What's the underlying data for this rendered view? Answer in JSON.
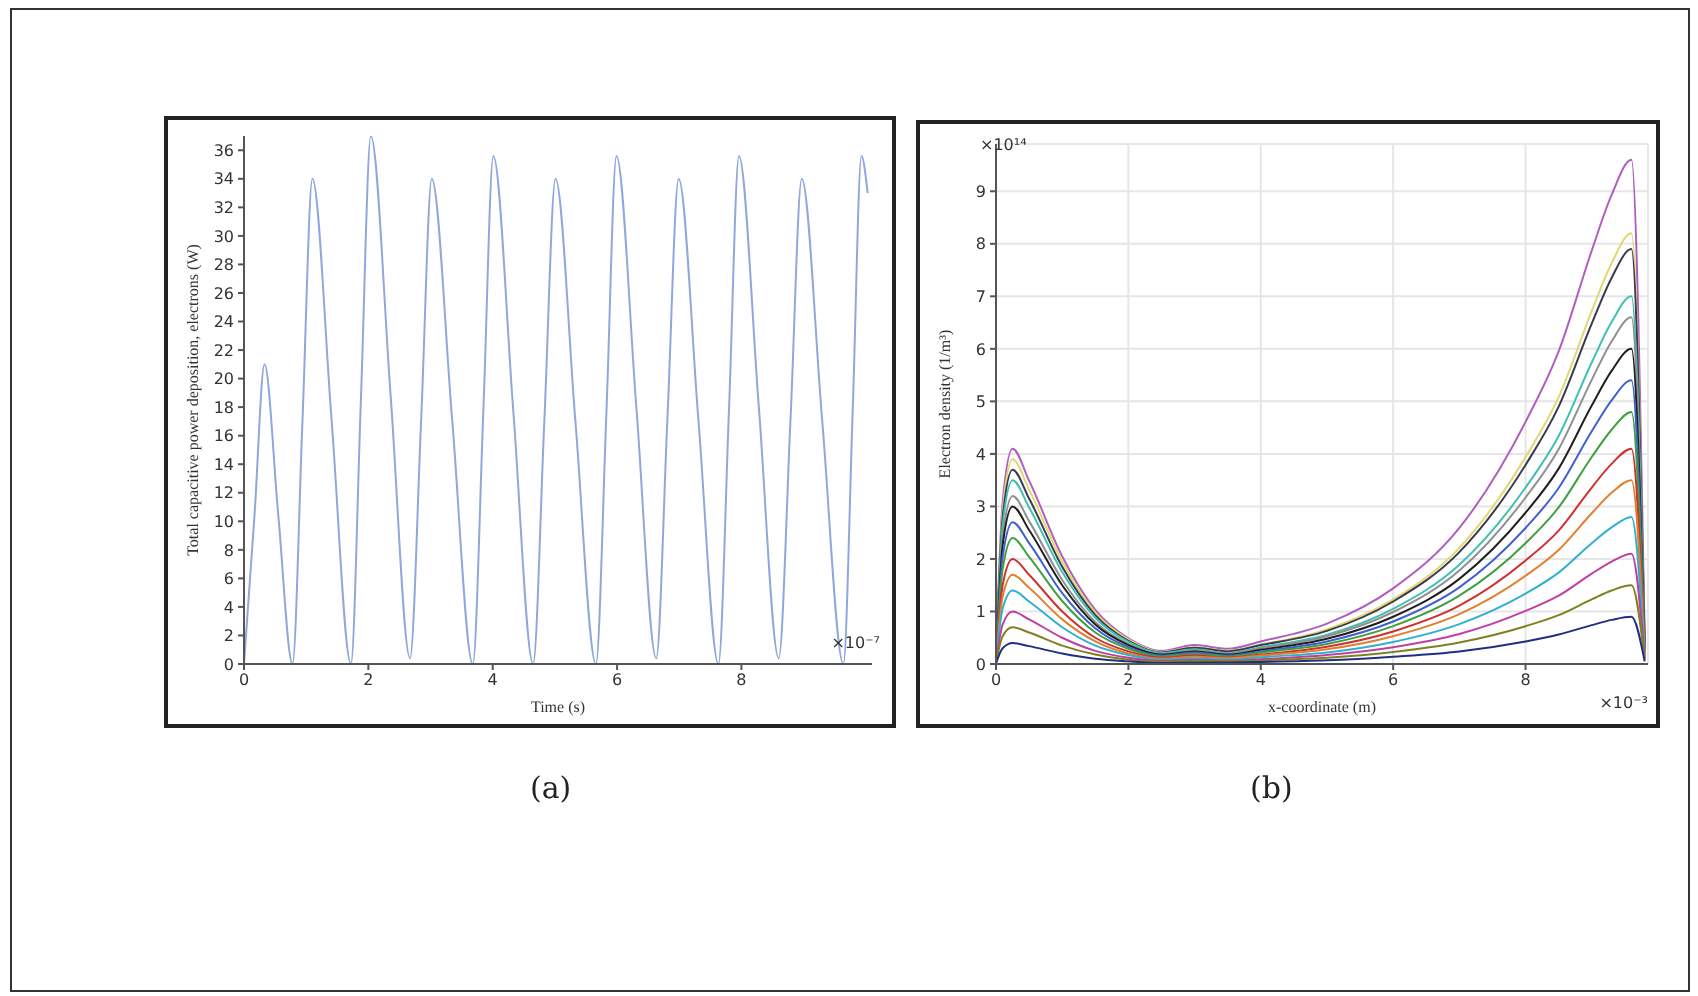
{
  "chart_data": [
    {
      "type": "line",
      "title": "(a)",
      "xlabel": "Time (s)",
      "ylabel": "Total capacitive power deposition, electrons (W)",
      "annotations": [
        "×10⁻⁷"
      ],
      "x": [
        0,
        0.17,
        0.33,
        0.55,
        0.78,
        0.94,
        1.1,
        1.41,
        1.72,
        1.88,
        2.04,
        2.36,
        2.67,
        2.85,
        3.02,
        3.35,
        3.68,
        3.85,
        4.01,
        4.33,
        4.65,
        4.83,
        5.01,
        5.33,
        5.66,
        5.83,
        5.99,
        6.31,
        6.63,
        6.81,
        6.99,
        7.31,
        7.63,
        7.8,
        7.96,
        8.28,
        8.6,
        8.79,
        8.97,
        9.3,
        9.64,
        9.79,
        9.93,
        10.03
      ],
      "series": [
        {
          "color": "#8fa8dc",
          "values": [
            0,
            10.5,
            21,
            10.5,
            0,
            17,
            34,
            17,
            0,
            18.5,
            37,
            18.7,
            0.4,
            17.2,
            34,
            17,
            0,
            17.8,
            35.6,
            17.8,
            0,
            17,
            34,
            17,
            0,
            17.8,
            35.6,
            18,
            0.4,
            17.2,
            34,
            17,
            0,
            17.8,
            35.6,
            18,
            0.4,
            17.2,
            34,
            17,
            0,
            17.8,
            35.6,
            33
          ]
        }
      ],
      "xlim": [
        0,
        10.1
      ],
      "xticks": [
        0,
        2,
        4,
        6,
        8
      ],
      "ylim": [
        0,
        37
      ],
      "yticks": [
        0,
        2,
        4,
        6,
        8,
        10,
        12,
        14,
        16,
        18,
        20,
        22,
        24,
        26,
        28,
        30,
        32,
        34,
        36
      ],
      "grid": false,
      "legend": false
    },
    {
      "type": "line",
      "title": "(b)",
      "xlabel": "x-coordinate (m)",
      "ylabel": "Electron density (1/m³)",
      "annotations": [
        "×10¹⁴",
        "×10⁻³"
      ],
      "x": [
        0,
        0.1,
        0.25,
        0.5,
        1,
        1.5,
        2,
        2.5,
        3,
        3.5,
        4,
        5,
        6,
        7,
        8,
        8.5,
        9,
        9.3,
        9.6,
        9.8
      ],
      "series": [
        {
          "color": "#b05fc0",
          "values": [
            0.12,
            3.08,
            4.1,
            3.49,
            2.05,
            1.03,
            0.49,
            0.25,
            0.36,
            0.29,
            0.43,
            0.77,
            1.44,
            2.59,
            4.61,
            5.95,
            7.87,
            8.93,
            9.6,
            0.48
          ]
        },
        {
          "color": "#e0d870",
          "values": [
            0.12,
            2.93,
            3.9,
            3.32,
            1.95,
            0.98,
            0.47,
            0.23,
            0.32,
            0.25,
            0.37,
            0.66,
            1.23,
            2.21,
            3.94,
            5.08,
            6.72,
            7.63,
            8.2,
            0.41
          ]
        },
        {
          "color": "#3a3a50",
          "values": [
            0.11,
            2.78,
            3.7,
            3.15,
            1.85,
            0.93,
            0.44,
            0.22,
            0.31,
            0.24,
            0.36,
            0.63,
            1.19,
            2.13,
            3.79,
            4.9,
            6.48,
            7.35,
            7.9,
            0.4
          ]
        },
        {
          "color": "#40c0b0",
          "values": [
            0.11,
            2.63,
            3.5,
            2.98,
            1.75,
            0.88,
            0.42,
            0.21,
            0.28,
            0.21,
            0.32,
            0.56,
            1.05,
            1.89,
            3.36,
            4.34,
            5.74,
            6.51,
            7.0,
            0.35
          ]
        },
        {
          "color": "#909090",
          "values": [
            0.1,
            2.4,
            3.2,
            2.72,
            1.6,
            0.8,
            0.38,
            0.19,
            0.26,
            0.2,
            0.3,
            0.53,
            0.99,
            1.78,
            3.17,
            4.09,
            5.41,
            6.14,
            6.6,
            0.33
          ]
        },
        {
          "color": "#202020",
          "values": [
            0.09,
            2.25,
            3.0,
            2.55,
            1.5,
            0.75,
            0.36,
            0.18,
            0.24,
            0.18,
            0.27,
            0.48,
            0.9,
            1.62,
            2.88,
            3.72,
            4.92,
            5.58,
            6.0,
            0.3
          ]
        },
        {
          "color": "#4060d0",
          "values": [
            0.08,
            2.03,
            2.7,
            2.3,
            1.35,
            0.68,
            0.32,
            0.16,
            0.22,
            0.16,
            0.24,
            0.43,
            0.81,
            1.46,
            2.59,
            3.35,
            4.43,
            5.02,
            5.4,
            0.27
          ]
        },
        {
          "color": "#40a040",
          "values": [
            0.07,
            1.8,
            2.4,
            2.04,
            1.2,
            0.6,
            0.29,
            0.14,
            0.19,
            0.14,
            0.22,
            0.38,
            0.72,
            1.3,
            2.3,
            2.98,
            3.94,
            4.46,
            4.8,
            0.24
          ]
        },
        {
          "color": "#d03030",
          "values": [
            0.06,
            1.5,
            2.0,
            1.7,
            1.0,
            0.5,
            0.24,
            0.12,
            0.16,
            0.12,
            0.18,
            0.33,
            0.62,
            1.11,
            1.97,
            2.54,
            3.36,
            3.81,
            4.1,
            0.21
          ]
        },
        {
          "color": "#e08030",
          "values": [
            0.05,
            1.28,
            1.7,
            1.45,
            0.85,
            0.43,
            0.2,
            0.1,
            0.14,
            0.11,
            0.16,
            0.28,
            0.53,
            0.95,
            1.68,
            2.17,
            2.87,
            3.26,
            3.5,
            0.18
          ]
        },
        {
          "color": "#30b0d0",
          "values": [
            0.04,
            1.05,
            1.4,
            1.19,
            0.7,
            0.35,
            0.17,
            0.08,
            0.11,
            0.08,
            0.13,
            0.22,
            0.42,
            0.76,
            1.34,
            1.74,
            2.3,
            2.6,
            2.8,
            0.14
          ]
        },
        {
          "color": "#c040a0",
          "values": [
            0.03,
            0.75,
            1.0,
            0.85,
            0.5,
            0.25,
            0.12,
            0.06,
            0.08,
            0.06,
            0.09,
            0.17,
            0.32,
            0.57,
            1.01,
            1.3,
            1.72,
            1.95,
            2.1,
            0.11
          ]
        },
        {
          "color": "#808020",
          "values": [
            0.02,
            0.53,
            0.7,
            0.6,
            0.35,
            0.18,
            0.08,
            0.04,
            0.06,
            0.05,
            0.07,
            0.12,
            0.23,
            0.41,
            0.72,
            0.93,
            1.23,
            1.4,
            1.5,
            0.08
          ]
        },
        {
          "color": "#203080",
          "values": [
            0.01,
            0.3,
            0.4,
            0.34,
            0.2,
            0.1,
            0.05,
            0.02,
            0.03,
            0.03,
            0.04,
            0.07,
            0.14,
            0.24,
            0.43,
            0.56,
            0.74,
            0.84,
            0.9,
            0.05
          ]
        }
      ],
      "xlim": [
        0,
        9.85
      ],
      "xticks": [
        0,
        2,
        4,
        6,
        8
      ],
      "ylim": [
        0,
        9.9
      ],
      "yticks": [
        0,
        1,
        2,
        3,
        4,
        5,
        6,
        7,
        8,
        9
      ],
      "grid": true,
      "legend": false
    }
  ]
}
